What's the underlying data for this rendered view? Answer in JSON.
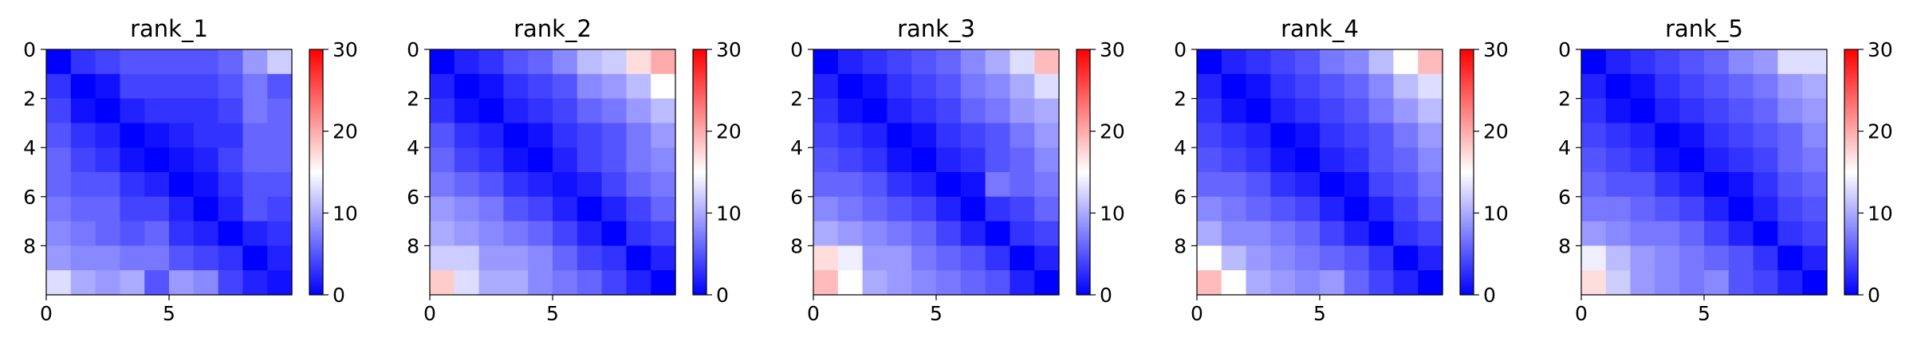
{
  "chart_data": [
    {
      "type": "heatmap",
      "title": "rank_1",
      "xlabel": "",
      "ylabel": "",
      "x_ticks": [
        0,
        5
      ],
      "y_ticks": [
        0,
        2,
        4,
        6,
        8
      ],
      "colorbar": {
        "vmin": 0,
        "vmax": 30,
        "ticks": [
          0,
          10,
          20,
          30
        ],
        "colormap": "bwr"
      },
      "grid": false,
      "values": [
        [
          0,
          3,
          4,
          5,
          5,
          5,
          5,
          6,
          9,
          12
        ],
        [
          3,
          0,
          1,
          4,
          4,
          4,
          4,
          5,
          7,
          5
        ],
        [
          4,
          1,
          0,
          2,
          3,
          3,
          3,
          4,
          7,
          6
        ],
        [
          5,
          3,
          2,
          0,
          1,
          2,
          3,
          3,
          6,
          6
        ],
        [
          6,
          4,
          3,
          1,
          0,
          1,
          2,
          4,
          6,
          6
        ],
        [
          6,
          5,
          5,
          3,
          2,
          0,
          1,
          3,
          5,
          5
        ],
        [
          7,
          6,
          6,
          4,
          4,
          2,
          0,
          2,
          5,
          4
        ],
        [
          8,
          7,
          6,
          5,
          6,
          3,
          2,
          0,
          2,
          3
        ],
        [
          9,
          8,
          8,
          7,
          7,
          5,
          4,
          3,
          0,
          2
        ],
        [
          13,
          10,
          9,
          10,
          5,
          9,
          8,
          4,
          2,
          1
        ]
      ]
    },
    {
      "type": "heatmap",
      "title": "rank_2",
      "xlabel": "",
      "ylabel": "",
      "x_ticks": [
        0,
        5
      ],
      "y_ticks": [
        0,
        2,
        4,
        6,
        8
      ],
      "colorbar": {
        "vmin": 0,
        "vmax": 30,
        "ticks": [
          0,
          10,
          20,
          30
        ],
        "colormap": "bwr"
      },
      "grid": false,
      "values": [
        [
          0,
          2,
          3,
          5,
          6,
          8,
          11,
          12,
          17,
          20
        ],
        [
          2,
          0,
          1,
          3,
          4,
          5,
          8,
          9,
          11,
          15
        ],
        [
          3,
          1,
          0,
          2,
          3,
          4,
          6,
          7,
          9,
          11
        ],
        [
          5,
          3,
          2,
          0,
          1,
          3,
          4,
          5,
          7,
          9
        ],
        [
          6,
          4,
          3,
          1,
          0,
          2,
          4,
          5,
          7,
          8
        ],
        [
          7,
          6,
          5,
          3,
          2,
          1,
          2,
          4,
          6,
          7
        ],
        [
          9,
          8,
          7,
          5,
          4,
          2,
          0,
          2,
          4,
          6
        ],
        [
          10,
          9,
          8,
          7,
          6,
          4,
          2,
          0,
          3,
          4
        ],
        [
          12,
          12,
          9,
          9,
          8,
          6,
          4,
          3,
          0,
          2
        ],
        [
          18,
          13,
          10,
          10,
          8,
          7,
          6,
          4,
          2,
          0
        ]
      ]
    },
    {
      "type": "heatmap",
      "title": "rank_3",
      "xlabel": "",
      "ylabel": "",
      "x_ticks": [
        0,
        5
      ],
      "y_ticks": [
        0,
        2,
        4,
        6,
        8
      ],
      "colorbar": {
        "vmin": 0,
        "vmax": 30,
        "ticks": [
          0,
          10,
          20,
          30
        ],
        "colormap": "bwr"
      },
      "grid": false,
      "values": [
        [
          0,
          2,
          3,
          4,
          5,
          6,
          8,
          10,
          13,
          19
        ],
        [
          2,
          0,
          1,
          3,
          4,
          5,
          7,
          8,
          10,
          13
        ],
        [
          3,
          1,
          0,
          2,
          3,
          4,
          6,
          7,
          9,
          10
        ],
        [
          4,
          3,
          2,
          0,
          1,
          3,
          4,
          5,
          7,
          9
        ],
        [
          5,
          4,
          3,
          1,
          0,
          2,
          3,
          5,
          6,
          8
        ],
        [
          6,
          6,
          5,
          3,
          2,
          0,
          1,
          7,
          6,
          7
        ],
        [
          8,
          7,
          6,
          5,
          4,
          2,
          0,
          3,
          4,
          6
        ],
        [
          10,
          9,
          8,
          7,
          6,
          4,
          2,
          0,
          3,
          4
        ],
        [
          17,
          14,
          9,
          9,
          7,
          6,
          5,
          3,
          0,
          2
        ],
        [
          19,
          15,
          10,
          9,
          8,
          7,
          6,
          5,
          2,
          0
        ]
      ]
    },
    {
      "type": "heatmap",
      "title": "rank_4",
      "xlabel": "",
      "ylabel": "",
      "x_ticks": [
        0,
        5
      ],
      "y_ticks": [
        0,
        2,
        4,
        6,
        8
      ],
      "colorbar": {
        "vmin": 0,
        "vmax": 30,
        "ticks": [
          0,
          10,
          20,
          30
        ],
        "colormap": "bwr"
      },
      "grid": false,
      "values": [
        [
          0,
          2,
          3,
          4,
          5,
          7,
          8,
          11,
          15,
          19
        ],
        [
          2,
          0,
          1,
          3,
          4,
          5,
          6,
          8,
          11,
          13
        ],
        [
          3,
          1,
          0,
          2,
          3,
          4,
          5,
          7,
          9,
          11
        ],
        [
          4,
          3,
          2,
          0,
          1,
          3,
          4,
          5,
          7,
          9
        ],
        [
          5,
          4,
          3,
          1,
          0,
          2,
          3,
          5,
          6,
          8
        ],
        [
          6,
          6,
          5,
          3,
          2,
          0,
          1,
          4,
          5,
          7
        ],
        [
          8,
          7,
          6,
          5,
          4,
          2,
          0,
          2,
          4,
          6
        ],
        [
          10,
          8,
          8,
          7,
          6,
          4,
          2,
          0,
          3,
          4
        ],
        [
          15,
          11,
          9,
          8,
          7,
          6,
          5,
          3,
          0,
          2
        ],
        [
          19,
          15,
          10,
          9,
          8,
          9,
          6,
          4,
          2,
          0
        ]
      ]
    },
    {
      "type": "heatmap",
      "title": "rank_5",
      "xlabel": "",
      "ylabel": "",
      "x_ticks": [
        0,
        5
      ],
      "y_ticks": [
        0,
        2,
        4,
        6,
        8
      ],
      "colorbar": {
        "vmin": 0,
        "vmax": 30,
        "ticks": [
          0,
          10,
          20,
          30
        ],
        "colormap": "bwr"
      },
      "grid": false,
      "values": [
        [
          0,
          2,
          3,
          4,
          5,
          6,
          8,
          9,
          13,
          13
        ],
        [
          2,
          0,
          1,
          3,
          4,
          5,
          6,
          7,
          9,
          10
        ],
        [
          3,
          1,
          0,
          2,
          3,
          4,
          5,
          6,
          8,
          9
        ],
        [
          4,
          3,
          2,
          0,
          1,
          3,
          4,
          5,
          6,
          8
        ],
        [
          5,
          4,
          3,
          1,
          0,
          2,
          3,
          4,
          6,
          7
        ],
        [
          6,
          5,
          5,
          3,
          2,
          0,
          1,
          3,
          5,
          6
        ],
        [
          7,
          7,
          6,
          5,
          4,
          2,
          0,
          2,
          4,
          5
        ],
        [
          9,
          8,
          7,
          7,
          6,
          4,
          2,
          0,
          3,
          4
        ],
        [
          14,
          11,
          9,
          8,
          7,
          6,
          5,
          3,
          0,
          2
        ],
        [
          17,
          12,
          9,
          8,
          7,
          8,
          5,
          4,
          2,
          0
        ]
      ]
    }
  ]
}
